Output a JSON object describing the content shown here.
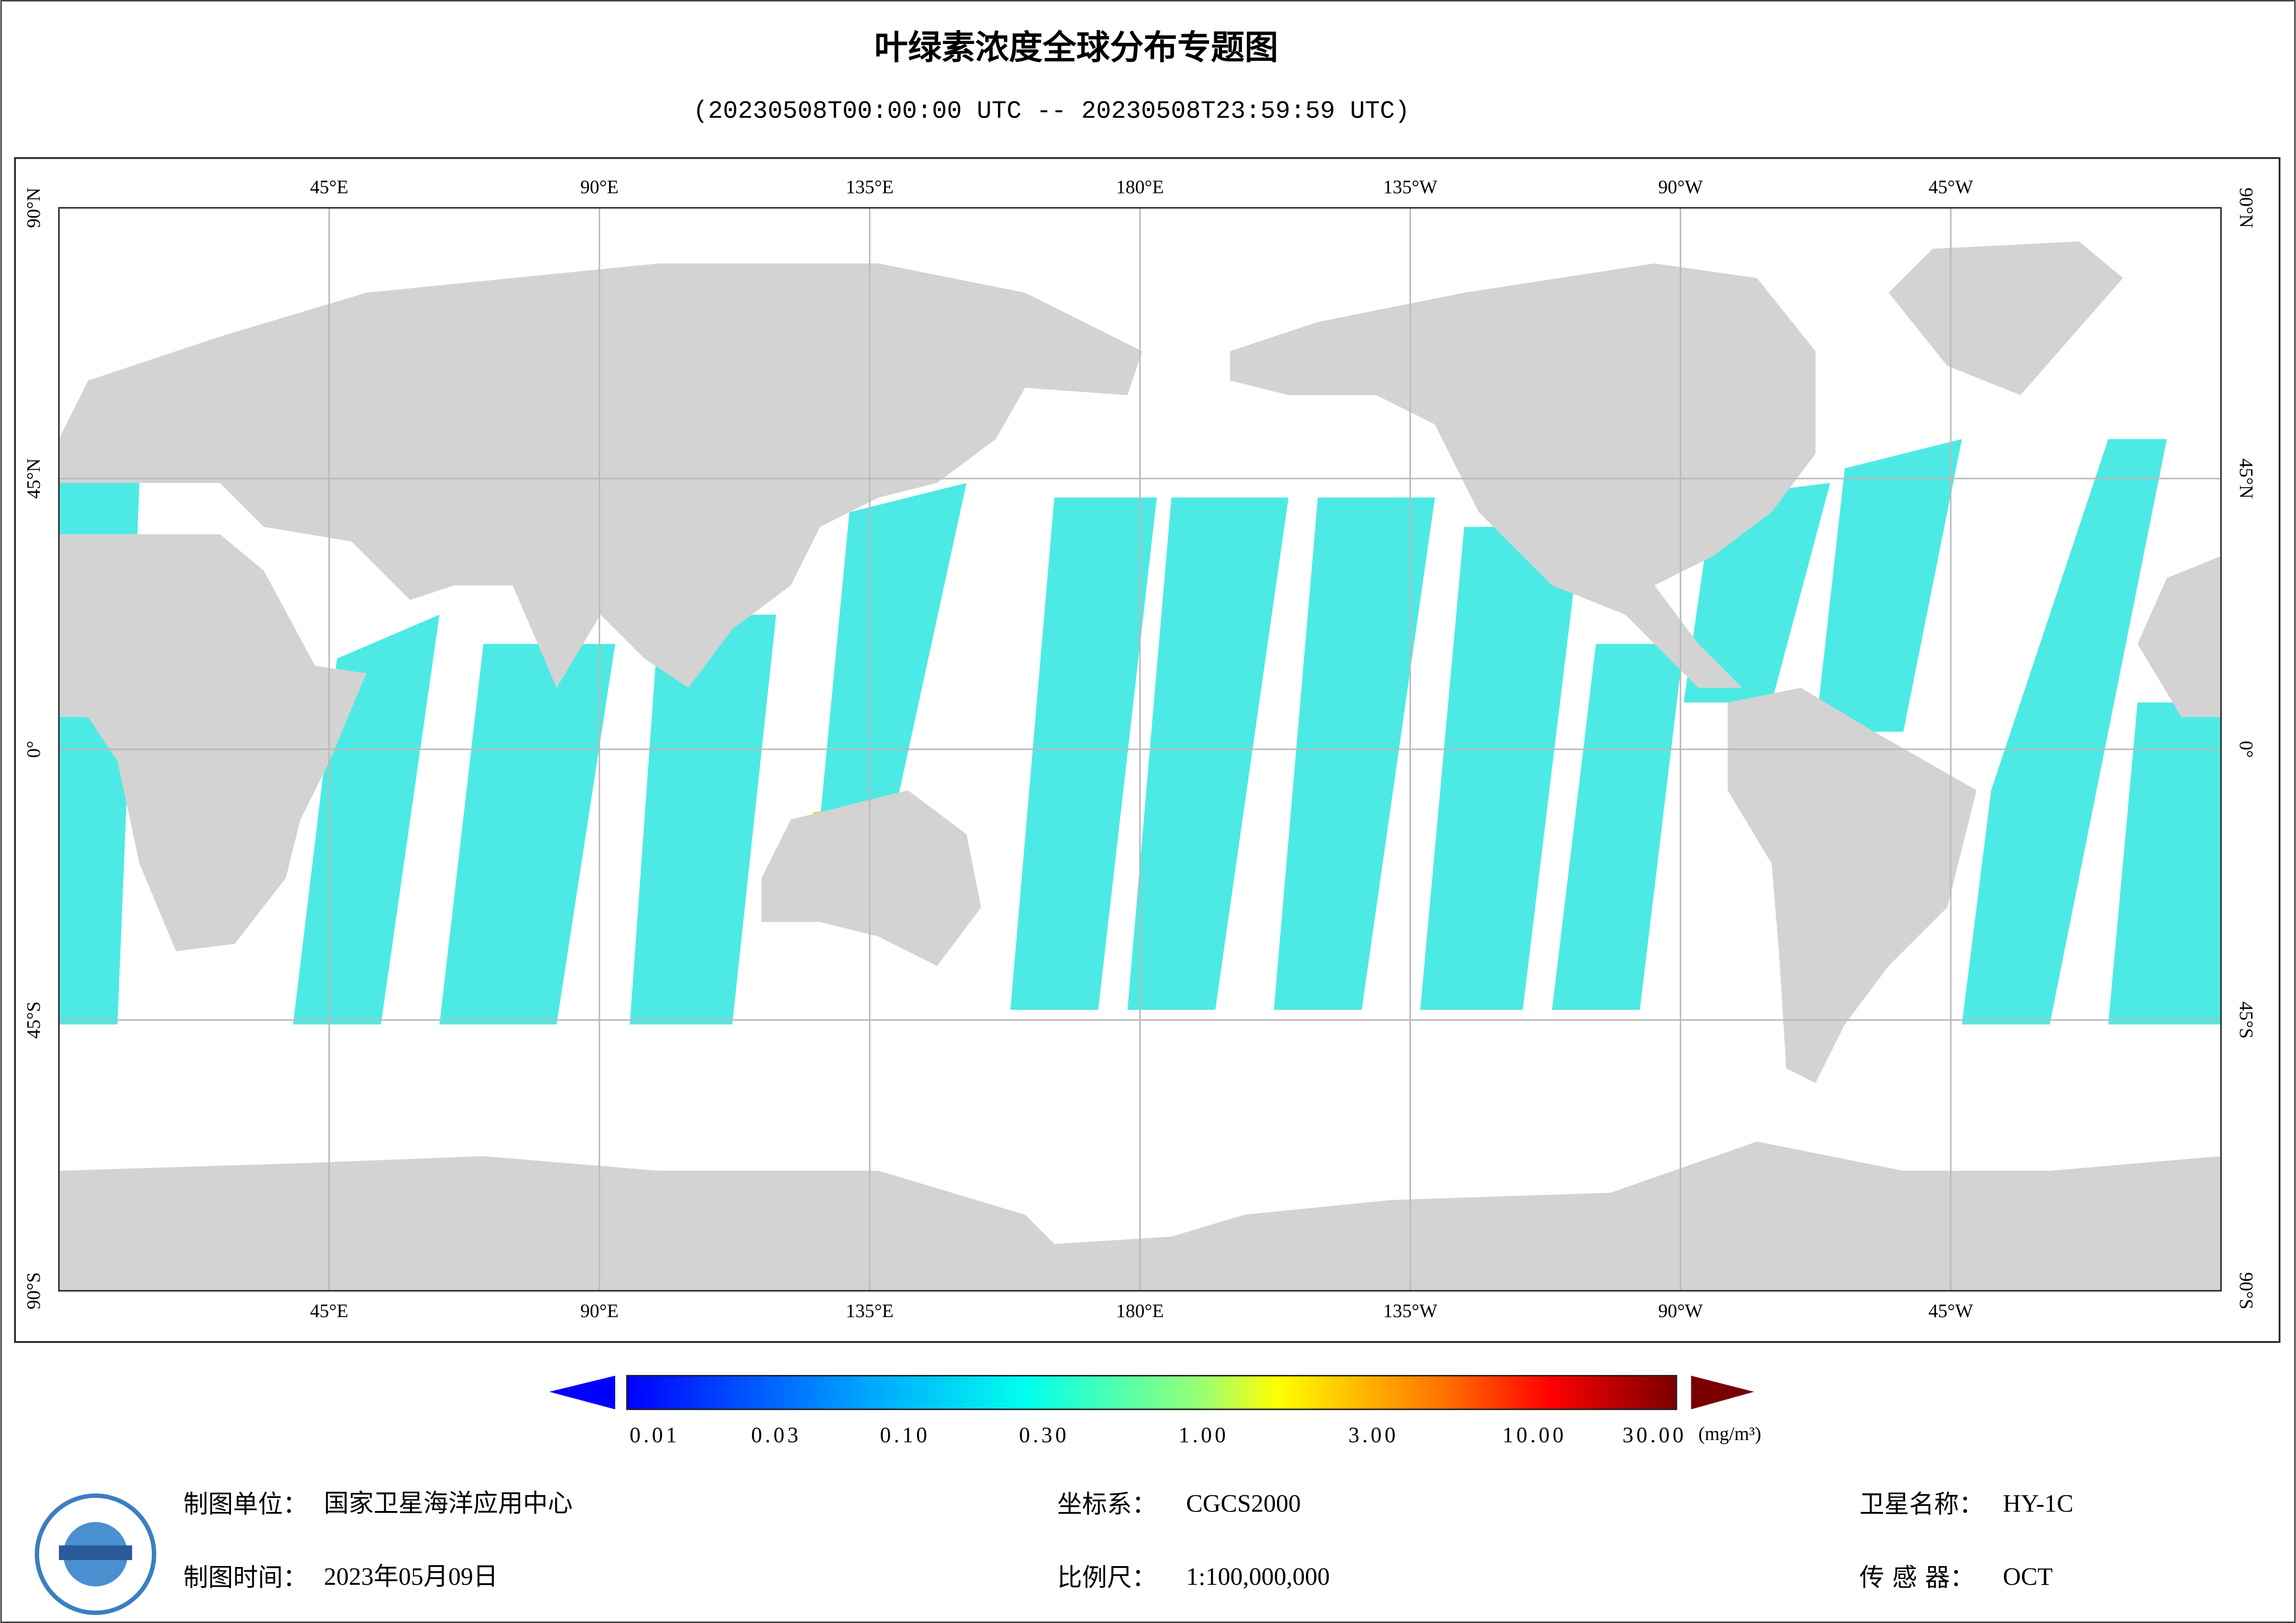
{
  "title": "叶绿素浓度全球分布专题图",
  "subtitle": "(20230508T00:00:00 UTC -- 20230508T23:59:59 UTC)",
  "map": {
    "lon_labels": [
      "45°E",
      "90°E",
      "135°E",
      "180°E",
      "135°W",
      "90°W",
      "45°W"
    ],
    "lat_labels": [
      "90°N",
      "45°N",
      "0°",
      "45°S",
      "90°S"
    ]
  },
  "colorbar": {
    "ticks": [
      "0.01",
      "0.03",
      "0.10",
      "0.30",
      "1.00",
      "3.00",
      "10.00",
      "30.00"
    ],
    "unit": "(mg/m³)"
  },
  "footer": [
    {
      "label": "制图单位：",
      "value": "国家卫星海洋应用中心"
    },
    {
      "label": "制图时间：",
      "value": "2023年05月09日"
    },
    {
      "label": "坐标系：",
      "value": "CGCS2000"
    },
    {
      "label": "比例尺：",
      "value": "1:100,000,000"
    },
    {
      "label": "卫星名称：",
      "value": "HY-1C"
    },
    {
      "label": "传 感 器：",
      "value": "OCT"
    }
  ]
}
